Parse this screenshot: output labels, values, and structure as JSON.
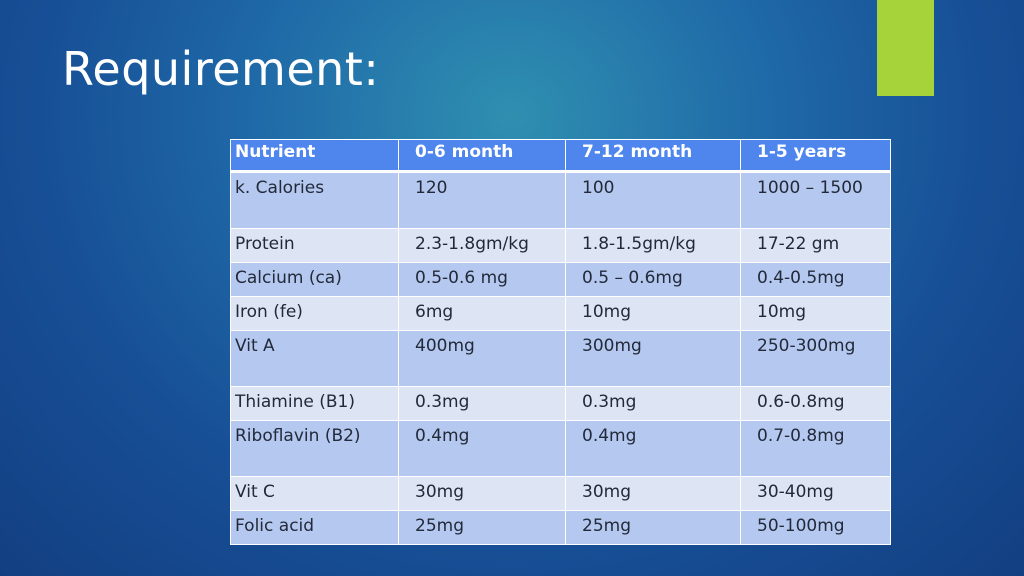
{
  "slide": {
    "title": "Requirement:"
  },
  "table": {
    "headers": [
      "Nutrient",
      "0-6 month",
      "7-12 month",
      "1-5 years"
    ],
    "rows": [
      [
        "k. Calories",
        "120",
        "100",
        "1000 – 1500"
      ],
      [
        "Protein",
        "2.3-1.8gm/kg",
        "1.8-1.5gm/kg",
        "17-22 gm"
      ],
      [
        "Calcium (ca)",
        "0.5-0.6 mg",
        "0.5 – 0.6mg",
        "0.4-0.5mg"
      ],
      [
        "Iron (fe)",
        "6mg",
        "10mg",
        "10mg"
      ],
      [
        "Vit A",
        "400mg",
        "300mg",
        "250-300mg"
      ],
      [
        "Thiamine (B1)",
        "0.3mg",
        "0.3mg",
        "0.6-0.8mg"
      ],
      [
        "Riboflavin (B2)",
        "0.4mg",
        "0.4mg",
        "0.7-0.8mg"
      ],
      [
        "Vit C",
        "30mg",
        "30mg",
        "30-40mg"
      ],
      [
        "Folic acid",
        "25mg",
        "25mg",
        "50-100mg"
      ]
    ]
  },
  "colors": {
    "accent": "#a6d33a",
    "header": "#4f86ee",
    "row_band_dark": "#b5c8ef",
    "row_band_light": "#dde5f5"
  }
}
